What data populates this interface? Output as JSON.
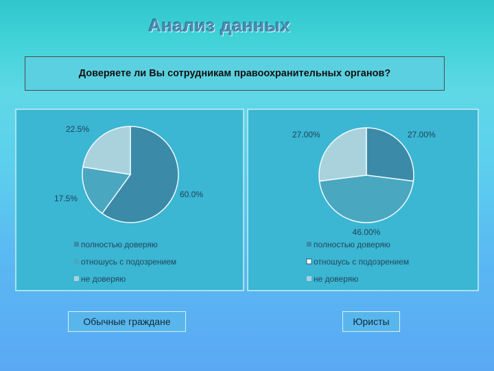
{
  "slide": {
    "title": "Анализ данных",
    "question": "Доверяете ли Вы сотрудникам правоохранительных органов?",
    "left_group_label": "Обычные граждане",
    "right_group_label": "Юристы"
  },
  "colors": {
    "trust_full": "#3b8aa7",
    "suspicion": "#4aa7c0",
    "no_trust": "#a9d2dd"
  },
  "chart_data": [
    {
      "type": "pie",
      "title": "",
      "categories": [
        "полностью доверяю",
        "отношусь с подозрением",
        "не доверяю"
      ],
      "values": [
        60.0,
        17.5,
        22.5
      ],
      "value_labels": [
        "60.0%",
        "17.5%",
        "22.5%"
      ],
      "colors": [
        "#3b8aa7",
        "#4aa7c0",
        "#a9d2dd"
      ],
      "legend_position": "bottom-left",
      "legend_markers": [
        "■",
        "■",
        "■"
      ]
    },
    {
      "type": "pie",
      "title": "",
      "categories": [
        "полностью доверяю",
        "отношусь с подозрением",
        "не доверяю"
      ],
      "values": [
        27.0,
        46.0,
        27.0
      ],
      "value_labels": [
        "27.00%",
        "46.00%",
        "27.00%"
      ],
      "colors": [
        "#3b8aa7",
        "#4aa7c0",
        "#a9d2dd"
      ],
      "legend_position": "bottom-left",
      "legend_markers": [
        "■",
        "□",
        "■"
      ]
    }
  ]
}
